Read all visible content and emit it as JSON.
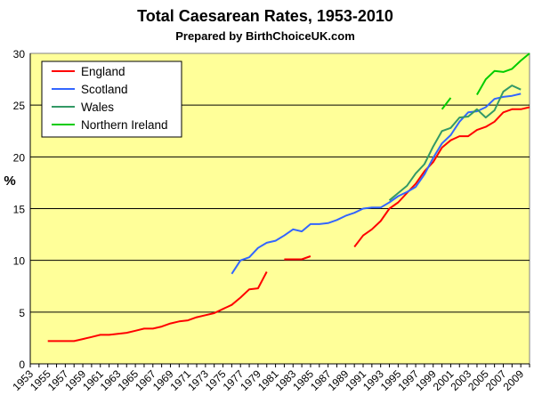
{
  "chart_data": {
    "type": "line",
    "title": "Total Caesarean Rates, 1953-2010",
    "subtitle": "Prepared by BirthChoiceUK.com",
    "xlabel": "",
    "ylabel": "%",
    "xlim": [
      1953,
      2010
    ],
    "ylim": [
      0,
      30
    ],
    "y_ticks": [
      0,
      5,
      10,
      15,
      20,
      25,
      30
    ],
    "x_tick_labels": [
      "1953",
      "1955",
      "1957",
      "1959",
      "1961",
      "1963",
      "1965",
      "1967",
      "1969",
      "1971",
      "1973",
      "1975",
      "1977",
      "1979",
      "1981",
      "1983",
      "1985",
      "1987",
      "1989",
      "1991",
      "1993",
      "1995",
      "1997",
      "1999",
      "2001",
      "2003",
      "2005",
      "2007",
      "2009"
    ],
    "grid": "horizontal",
    "legend_position": "top-left",
    "plot_background": "#ffff99",
    "series": [
      {
        "name": "England",
        "color": "#ff0000",
        "segments": [
          {
            "x": [
              1955,
              1956,
              1957,
              1958,
              1959,
              1960,
              1961,
              1962,
              1963,
              1964,
              1965,
              1966,
              1967,
              1968,
              1969,
              1970,
              1971,
              1972,
              1973,
              1974,
              1975,
              1976,
              1977,
              1978,
              1979,
              1980
            ],
            "y": [
              2.2,
              2.2,
              2.2,
              2.2,
              2.4,
              2.6,
              2.8,
              2.8,
              2.9,
              3.0,
              3.2,
              3.4,
              3.4,
              3.6,
              3.9,
              4.1,
              4.2,
              4.5,
              4.7,
              4.9,
              5.3,
              5.7,
              6.4,
              7.2,
              7.3,
              8.9
            ]
          },
          {
            "x": [
              1982,
              1983,
              1984,
              1985
            ],
            "y": [
              10.1,
              10.1,
              10.1,
              10.4
            ]
          },
          {
            "x": [
              1990,
              1991,
              1992,
              1993,
              1994,
              1995,
              1996,
              1997,
              1998,
              1999,
              2000,
              2001,
              2002,
              2003,
              2004,
              2005,
              2006,
              2007,
              2008,
              2009,
              2010
            ],
            "y": [
              11.3,
              12.4,
              13.0,
              13.8,
              15.0,
              15.6,
              16.5,
              17.4,
              18.6,
              19.5,
              20.9,
              21.6,
              22.0,
              22.0,
              22.6,
              22.9,
              23.4,
              24.3,
              24.6,
              24.6,
              24.8
            ]
          }
        ]
      },
      {
        "name": "Scotland",
        "color": "#3366ff",
        "segments": [
          {
            "x": [
              1976,
              1977,
              1978,
              1979,
              1980,
              1981,
              1982,
              1983,
              1984,
              1985,
              1986,
              1987,
              1988,
              1989,
              1990,
              1991,
              1992,
              1993,
              1994,
              1995,
              1996,
              1997,
              1998,
              1999,
              2000,
              2001,
              2002,
              2003,
              2004,
              2005,
              2006,
              2007,
              2008,
              2009
            ],
            "y": [
              8.7,
              10.0,
              10.3,
              11.2,
              11.7,
              11.9,
              12.4,
              13.0,
              12.8,
              13.5,
              13.5,
              13.6,
              13.9,
              14.3,
              14.6,
              15.0,
              15.1,
              15.1,
              15.6,
              16.2,
              16.6,
              17.1,
              18.3,
              19.9,
              21.3,
              22.1,
              23.4,
              24.3,
              24.4,
              24.8,
              25.6,
              25.8,
              25.9,
              26.1
            ]
          }
        ]
      },
      {
        "name": "Wales",
        "color": "#339966",
        "segments": [
          {
            "x": [
              1994,
              1995,
              1996,
              1997,
              1998,
              1999,
              2000,
              2001,
              2002,
              2003,
              2004,
              2005,
              2006,
              2007,
              2008,
              2009
            ],
            "y": [
              15.8,
              16.5,
              17.2,
              18.4,
              19.3,
              21.0,
              22.5,
              22.8,
              23.8,
              23.9,
              24.6,
              23.8,
              24.5,
              26.3,
              26.9,
              26.5
            ]
          }
        ]
      },
      {
        "name": "Northern Ireland",
        "color": "#00cc00",
        "segments": [
          {
            "x": [
              2000,
              2001
            ],
            "y": [
              24.6,
              25.7
            ]
          },
          {
            "x": [
              2004,
              2005,
              2006,
              2007,
              2008,
              2009,
              2010
            ],
            "y": [
              26.0,
              27.5,
              28.3,
              28.2,
              28.5,
              29.3,
              30.0
            ]
          }
        ]
      }
    ]
  }
}
